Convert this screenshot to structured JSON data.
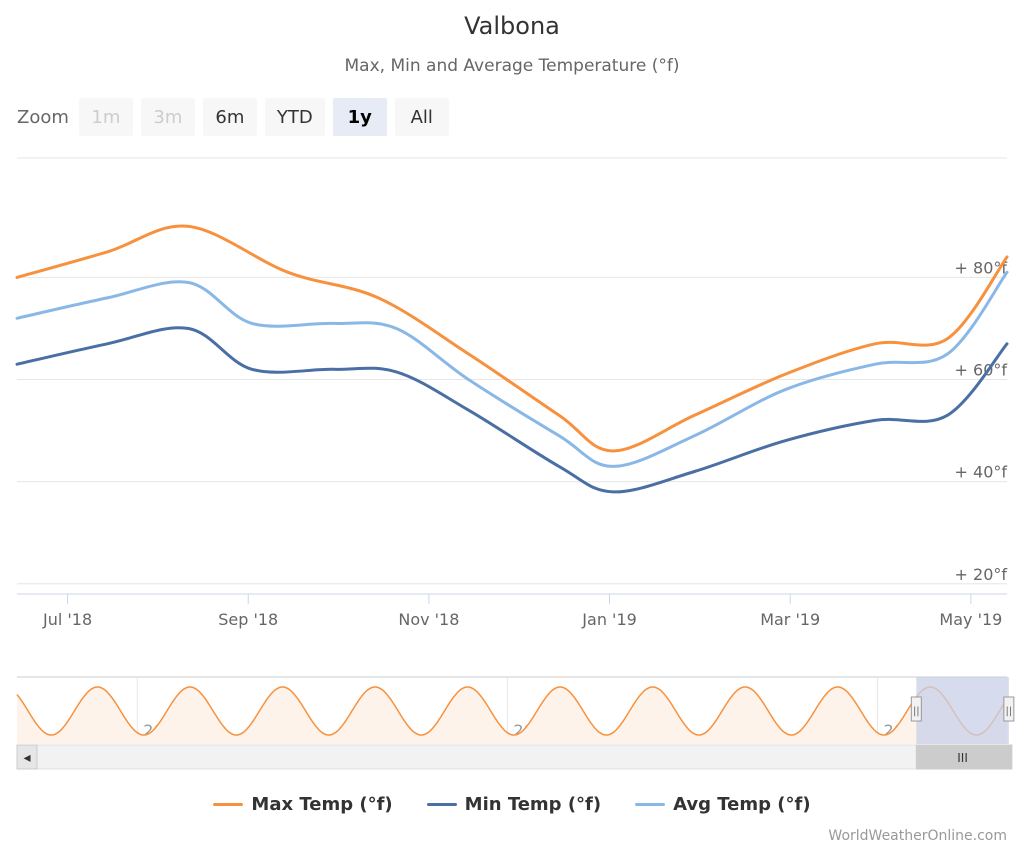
{
  "header": {
    "title": "Valbona",
    "subtitle": "Max, Min and Average Temperature (°f)"
  },
  "zoom": {
    "label": "Zoom",
    "buttons": [
      {
        "label": "1m",
        "state": "disabled"
      },
      {
        "label": "3m",
        "state": "disabled"
      },
      {
        "label": "6m",
        "state": "normal"
      },
      {
        "label": "YTD",
        "state": "normal"
      },
      {
        "label": "1y",
        "state": "active"
      },
      {
        "label": "All",
        "state": "normal"
      }
    ]
  },
  "colors": {
    "max": "#f7913d",
    "min": "#4a6fa5",
    "avg": "#8ab8e6",
    "grid": "#e6e6e6",
    "navigator_mask": "#c8d0e8",
    "navigator_fill": "#fdf3ea"
  },
  "chart_data": {
    "type": "line",
    "title": "Valbona",
    "subtitle": "Max, Min and Average Temperature (°f)",
    "x_tick_labels": [
      "Jul '18",
      "Sep '18",
      "Nov '18",
      "Jan '19",
      "Mar '19",
      "May '19"
    ],
    "y_tick_labels": [
      "+ 20°f",
      "+ 40°f",
      "+ 60°f",
      "+ 80°f"
    ],
    "y_ticks": [
      20,
      40,
      60,
      80
    ],
    "ylim": [
      18,
      103
    ],
    "x_range_months": [
      0,
      10.96
    ],
    "x_tick_months": [
      0.56,
      2.56,
      4.56,
      6.56,
      8.56,
      10.56
    ],
    "legend_position": "bottom-center",
    "grid": true,
    "series": [
      {
        "name": "Max Temp (°f)",
        "color_key": "max",
        "x": [
          0,
          1,
          1.9,
          3,
          4,
          5,
          6,
          6.6,
          7.5,
          8.5,
          9.5,
          10.3,
          10.96
        ],
        "values": [
          80,
          85,
          90,
          81,
          76,
          65,
          53,
          46,
          53,
          61,
          67,
          68,
          84
        ]
      },
      {
        "name": "Min Temp (°f)",
        "color_key": "min",
        "x": [
          0,
          1,
          1.9,
          2.6,
          3.5,
          4.2,
          5,
          6,
          6.6,
          7.5,
          8.5,
          9.5,
          10.3,
          10.96
        ],
        "values": [
          63,
          67,
          70,
          62,
          62,
          61.5,
          54,
          43,
          38,
          42,
          48,
          52,
          53,
          67
        ]
      },
      {
        "name": "Avg Temp (°f)",
        "color_key": "avg",
        "x": [
          0,
          1,
          1.9,
          2.6,
          3.5,
          4.2,
          5,
          6,
          6.6,
          7.5,
          8.5,
          9.5,
          10.3,
          10.96
        ],
        "values": [
          72,
          76,
          79,
          71,
          71,
          70,
          60,
          49,
          43,
          49,
          58,
          63,
          65,
          81
        ]
      }
    ]
  },
  "navigator": {
    "year_labels": [
      "2010",
      "2014",
      "2018"
    ],
    "scroll_thumb_label": "III",
    "left_arrow": "◂",
    "right_arrow": "▸",
    "handle_glyph": "||",
    "range_years": [
      2008.7,
      2019.4
    ],
    "year_label_positions": [
      2010,
      2014,
      2018
    ],
    "selected_range": [
      2018.42,
      2019.42
    ]
  },
  "legend": {
    "items": [
      {
        "label": "Max Temp (°f)",
        "color_key": "max"
      },
      {
        "label": "Min Temp (°f)",
        "color_key": "min"
      },
      {
        "label": "Avg Temp (°f)",
        "color_key": "avg"
      }
    ]
  },
  "credit": "WorldWeatherOnline.com"
}
